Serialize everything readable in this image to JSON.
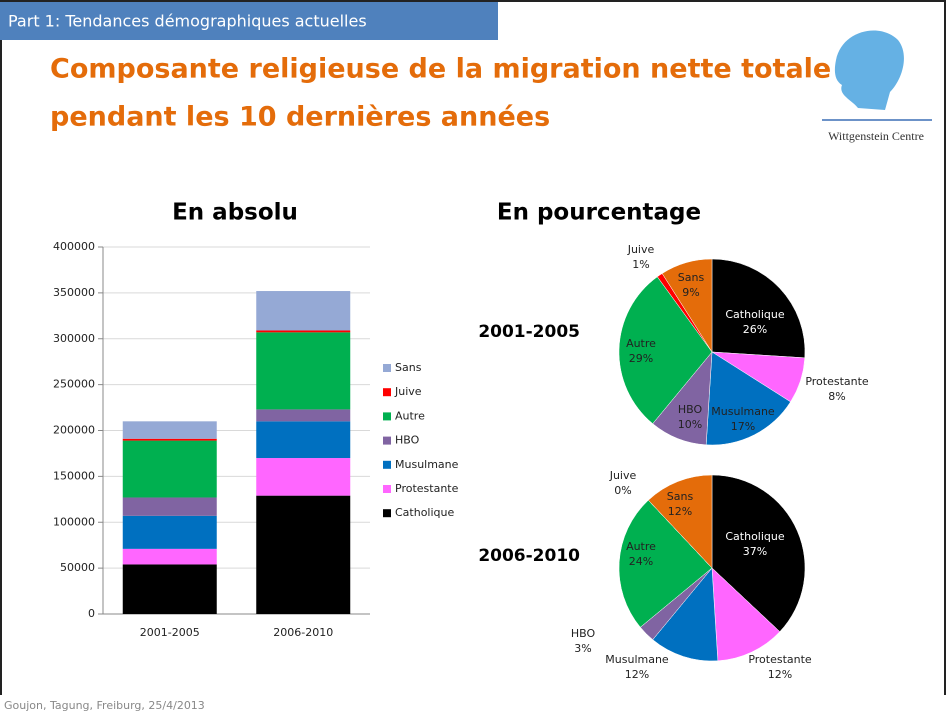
{
  "header": "Part 1: Tendances démographiques actuelles",
  "title_lines": [
    "Composante religieuse de la migration nette totale",
    "pendant les 10 dernières années"
  ],
  "logo_text": "Wittgenstein Centre",
  "pie_section_title": "En pourcentage",
  "footer": "Goujon,  Tagung, Freiburg, 25/4/2013",
  "chart_data": [
    {
      "type": "bar",
      "stacked": true,
      "title": "En absolu",
      "categories": [
        "2001-2005",
        "2006-2010"
      ],
      "series": [
        {
          "name": "Catholique",
          "color": "#000000",
          "values": [
            54000,
            129000
          ]
        },
        {
          "name": "Protestante",
          "color": "#ff66ff",
          "values": [
            17000,
            41000
          ]
        },
        {
          "name": "Musulmane",
          "color": "#0070c0",
          "values": [
            36000,
            40000
          ]
        },
        {
          "name": "HBO",
          "color": "#8064a2",
          "values": [
            20000,
            13000
          ]
        },
        {
          "name": "Autre",
          "color": "#00b050",
          "values": [
            62000,
            84000
          ]
        },
        {
          "name": "Juive",
          "color": "#ff0000",
          "values": [
            2000,
            2000
          ]
        },
        {
          "name": "Sans",
          "color": "#95a9d5",
          "values": [
            19000,
            43000
          ]
        }
      ],
      "ylim": [
        0,
        400000
      ],
      "yticks": [
        0,
        50000,
        100000,
        150000,
        200000,
        250000,
        300000,
        350000,
        400000
      ],
      "grid": true,
      "legend": "right"
    },
    {
      "type": "pie",
      "title": "2001-2005",
      "categories": [
        "Catholique",
        "Protestante",
        "Musulmane",
        "HBO",
        "Autre",
        "Juive",
        "Sans"
      ],
      "values": [
        26,
        8,
        17,
        10,
        29,
        1,
        9
      ],
      "value_labels": [
        "26%",
        "8%",
        "17%",
        "10%",
        "29%",
        "1%",
        "9%"
      ],
      "colors": [
        "#000000",
        "#ff66ff",
        "#0070c0",
        "#8064a2",
        "#00b050",
        "#ff0000",
        "#e46c0a"
      ]
    },
    {
      "type": "pie",
      "title": "2006-2010",
      "categories": [
        "Catholique",
        "Protestante",
        "Musulmane",
        "HBO",
        "Autre",
        "Juive",
        "Sans"
      ],
      "values": [
        37,
        12,
        12,
        3,
        24,
        0,
        12
      ],
      "value_labels": [
        "37%",
        "12%",
        "12%",
        "3%",
        "24%",
        "0%",
        "12%"
      ],
      "colors": [
        "#000000",
        "#ff66ff",
        "#0070c0",
        "#8064a2",
        "#00b050",
        "#ff0000",
        "#e46c0a"
      ]
    }
  ]
}
